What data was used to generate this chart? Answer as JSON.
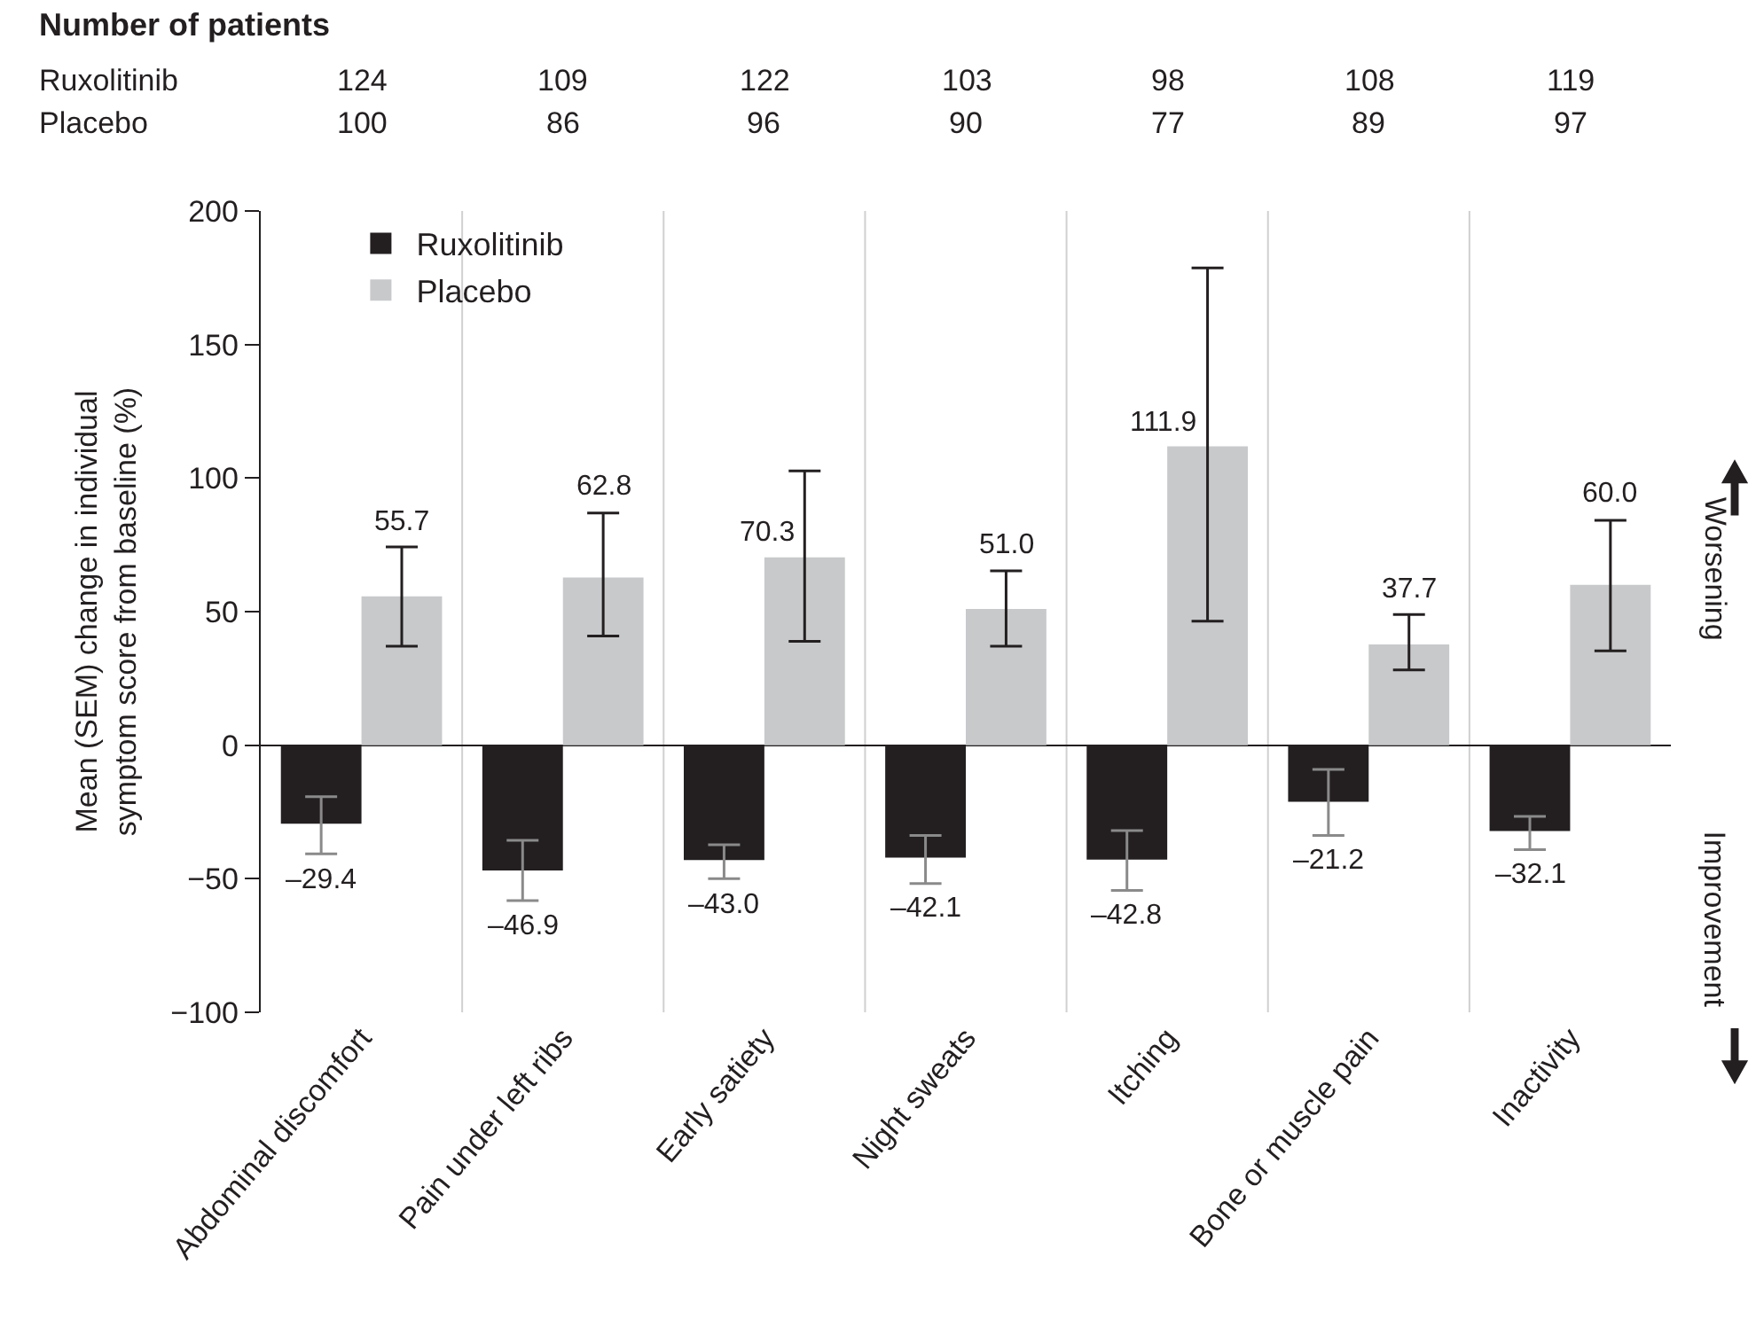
{
  "chart_data": {
    "type": "bar",
    "ylabel": "Mean (SEM) change in individual\nsymptom score from baseline (%)",
    "categories": [
      "Abdominal discomfort",
      "Pain under left ribs",
      "Early satiety",
      "Night sweats",
      "Itching",
      "Bone or muscle pain",
      "Inactivity"
    ],
    "series": [
      {
        "name": "Ruxolitinib",
        "color": "#231f20",
        "values": [
          -29.4,
          -46.9,
          -43.0,
          -42.1,
          -42.8,
          -21.2,
          -32.1
        ],
        "value_labels": [
          "–29.4",
          "–46.9",
          "–43.0",
          "–42.1",
          "–42.8",
          "–21.2",
          "–32.1"
        ],
        "errors": [
          [
            -40.7,
            -19.3
          ],
          [
            -58.2,
            -35.6
          ],
          [
            -50.0,
            -37.3
          ],
          [
            -51.8,
            -33.8
          ],
          [
            -54.4,
            -32.0
          ],
          [
            -33.8,
            -9.1
          ],
          [
            -39.1,
            -26.7
          ]
        ]
      },
      {
        "name": "Placebo",
        "color": "#c8c9cb",
        "values": [
          55.7,
          62.8,
          70.3,
          51.0,
          111.9,
          37.7,
          60.0
        ],
        "value_labels": [
          "55.7",
          "62.8",
          "70.3",
          "51.0",
          "111.9",
          "37.7",
          "60.0"
        ],
        "errors": [
          [
            37.1,
            74.2
          ],
          [
            40.9,
            86.9
          ],
          [
            38.9,
            102.7
          ],
          [
            37.1,
            65.3
          ],
          [
            46.4,
            178.7
          ],
          [
            28.2,
            48.9
          ],
          [
            35.3,
            84.2
          ]
        ]
      }
    ],
    "ylim": [
      -100,
      200
    ],
    "yticks": [
      {
        "value": -100,
        "label": "−100"
      },
      {
        "value": -50,
        "label": "−50"
      },
      0,
      50,
      100,
      150,
      200
    ],
    "grid": "x",
    "legend": "top left",
    "annotations": [
      "Number of patients",
      "Ruxolitinib",
      "124",
      "109",
      "122",
      "103",
      "98",
      "108",
      "119",
      "Placebo",
      "100",
      "86",
      "96",
      "90",
      "77",
      "89",
      "97",
      "Worsening",
      "Improvement"
    ]
  }
}
